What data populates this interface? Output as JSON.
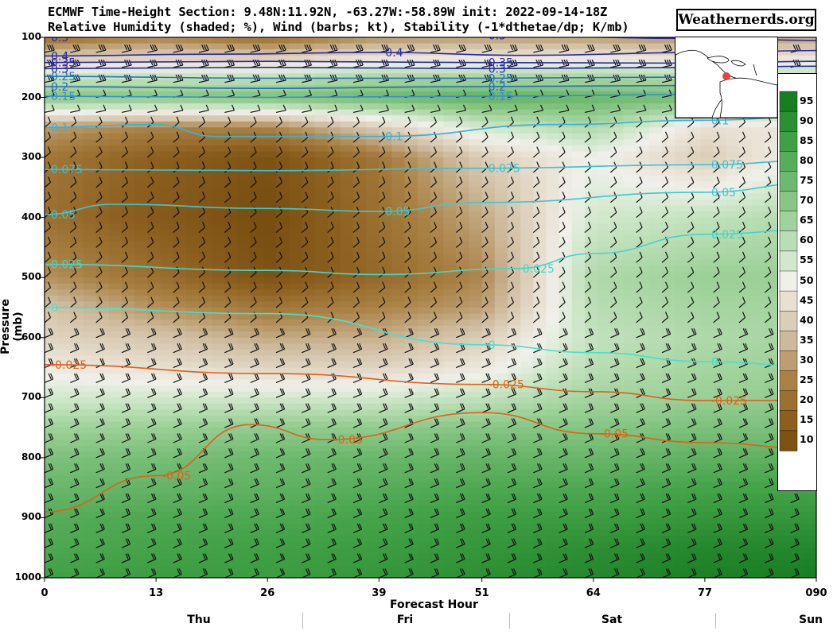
{
  "title": {
    "line1": "ECMWF Time-Height Section: 9.48N:11.92N, -63.27W:-58.89W init: 2022-09-14-18Z",
    "line2": "Relative Humidity (shaded; %), Wind (barbs; kt), Stability (-1*dthetae/dp; K/mb)"
  },
  "brand": "Weathernerds.org",
  "colors": {
    "dry_max": "#7a4e10",
    "moist_max": "#147a1f",
    "stability_positive": "#2a2aa0",
    "stability_mid": "#3a8fd0",
    "stability_low": "#3fd0c8",
    "stability_negative": "#e0601a"
  },
  "chart_data": {
    "type": "heatmap",
    "title": "ECMWF Time-Height Section: 9.48N:11.92N, -63.27W:-58.89W init: 2022-09-14-18Z",
    "subtitle": "Relative Humidity (shaded; %), Wind (barbs; kt), Stability (-1*dthetae/dp; K/mb)",
    "xlabel": "Forecast Hour",
    "ylabel": "Pressure (mb)",
    "xlim": [
      0,
      90
    ],
    "ylim": [
      1000,
      100
    ],
    "x_ticks": [
      "0",
      "13",
      "26",
      "39",
      "51",
      "64",
      "77",
      "090"
    ],
    "x_tick_values": [
      0,
      13,
      26,
      39,
      51,
      64,
      77,
      90
    ],
    "y_ticks": [
      "100",
      "200",
      "300",
      "400",
      "500",
      "600",
      "700",
      "800",
      "900",
      "1000"
    ],
    "y_tick_values": [
      100,
      200,
      300,
      400,
      500,
      600,
      700,
      800,
      900,
      1000
    ],
    "day_labels": [
      "Thu",
      "Fri",
      "Sat",
      "Sun"
    ],
    "colorbar_ticks": [
      "95",
      "90",
      "85",
      "80",
      "75",
      "70",
      "65",
      "60",
      "55",
      "50",
      "45",
      "40",
      "35",
      "30",
      "25",
      "20",
      "15",
      "10"
    ],
    "rh_columns": [
      {
        "hour": 0,
        "rh": [
          [
            100,
            20
          ],
          [
            160,
            55
          ],
          [
            200,
            70
          ],
          [
            250,
            30
          ],
          [
            300,
            22
          ],
          [
            400,
            20
          ],
          [
            500,
            28
          ],
          [
            550,
            38
          ],
          [
            600,
            42
          ],
          [
            650,
            48
          ],
          [
            700,
            55
          ],
          [
            750,
            65
          ],
          [
            800,
            72
          ],
          [
            850,
            76
          ],
          [
            900,
            80
          ],
          [
            950,
            82
          ],
          [
            1000,
            85
          ]
        ]
      },
      {
        "hour": 13,
        "rh": [
          [
            100,
            25
          ],
          [
            160,
            55
          ],
          [
            200,
            70
          ],
          [
            250,
            25
          ],
          [
            300,
            15
          ],
          [
            400,
            13
          ],
          [
            500,
            20
          ],
          [
            550,
            28
          ],
          [
            600,
            38
          ],
          [
            650,
            45
          ],
          [
            700,
            55
          ],
          [
            750,
            66
          ],
          [
            800,
            73
          ],
          [
            850,
            77
          ],
          [
            900,
            82
          ],
          [
            950,
            84
          ],
          [
            1000,
            86
          ]
        ]
      },
      {
        "hour": 26,
        "rh": [
          [
            100,
            20
          ],
          [
            160,
            55
          ],
          [
            200,
            72
          ],
          [
            250,
            25
          ],
          [
            300,
            10
          ],
          [
            400,
            8
          ],
          [
            500,
            10
          ],
          [
            550,
            22
          ],
          [
            600,
            32
          ],
          [
            650,
            42
          ],
          [
            700,
            55
          ],
          [
            750,
            68
          ],
          [
            800,
            75
          ],
          [
            850,
            78
          ],
          [
            900,
            82
          ],
          [
            950,
            85
          ],
          [
            1000,
            86
          ]
        ]
      },
      {
        "hour": 39,
        "rh": [
          [
            100,
            28
          ],
          [
            160,
            60
          ],
          [
            200,
            75
          ],
          [
            250,
            40
          ],
          [
            300,
            22
          ],
          [
            400,
            20
          ],
          [
            500,
            18
          ],
          [
            550,
            25
          ],
          [
            600,
            33
          ],
          [
            650,
            42
          ],
          [
            700,
            55
          ],
          [
            750,
            68
          ],
          [
            800,
            76
          ],
          [
            850,
            80
          ],
          [
            900,
            84
          ],
          [
            950,
            86
          ],
          [
            1000,
            88
          ]
        ]
      },
      {
        "hour": 51,
        "rh": [
          [
            100,
            30
          ],
          [
            160,
            60
          ],
          [
            200,
            78
          ],
          [
            250,
            55
          ],
          [
            300,
            40
          ],
          [
            400,
            32
          ],
          [
            500,
            26
          ],
          [
            550,
            30
          ],
          [
            600,
            40
          ],
          [
            650,
            47
          ],
          [
            700,
            58
          ],
          [
            750,
            70
          ],
          [
            800,
            77
          ],
          [
            850,
            82
          ],
          [
            900,
            86
          ],
          [
            950,
            88
          ],
          [
            1000,
            90
          ]
        ]
      },
      {
        "hour": 64,
        "rh": [
          [
            100,
            30
          ],
          [
            160,
            60
          ],
          [
            200,
            76
          ],
          [
            250,
            62
          ],
          [
            300,
            50
          ],
          [
            400,
            55
          ],
          [
            500,
            62
          ],
          [
            550,
            60
          ],
          [
            600,
            58
          ],
          [
            650,
            60
          ],
          [
            700,
            64
          ],
          [
            750,
            70
          ],
          [
            800,
            76
          ],
          [
            850,
            82
          ],
          [
            900,
            86
          ],
          [
            950,
            90
          ],
          [
            1000,
            92
          ]
        ]
      },
      {
        "hour": 77,
        "rh": [
          [
            100,
            28
          ],
          [
            160,
            58
          ],
          [
            200,
            74
          ],
          [
            250,
            45
          ],
          [
            300,
            40
          ],
          [
            400,
            58
          ],
          [
            500,
            66
          ],
          [
            550,
            64
          ],
          [
            600,
            62
          ],
          [
            650,
            64
          ],
          [
            700,
            66
          ],
          [
            750,
            72
          ],
          [
            800,
            78
          ],
          [
            850,
            84
          ],
          [
            900,
            88
          ],
          [
            950,
            92
          ],
          [
            1000,
            94
          ]
        ]
      },
      {
        "hour": 90,
        "rh": [
          [
            100,
            32
          ],
          [
            160,
            58
          ],
          [
            200,
            72
          ],
          [
            250,
            48
          ],
          [
            300,
            52
          ],
          [
            400,
            62
          ],
          [
            500,
            66
          ],
          [
            550,
            64
          ],
          [
            600,
            64
          ],
          [
            650,
            66
          ],
          [
            700,
            68
          ],
          [
            750,
            72
          ],
          [
            800,
            78
          ],
          [
            850,
            84
          ],
          [
            900,
            88
          ],
          [
            950,
            92
          ],
          [
            1000,
            95
          ]
        ]
      }
    ],
    "stability_contours": [
      {
        "label": "0.5",
        "color": "#2a2aa0",
        "points": [
          [
            0,
            100
          ],
          [
            26,
            97
          ],
          [
            51,
            97
          ],
          [
            77,
            102
          ],
          [
            90,
            105
          ]
        ]
      },
      {
        "label": "0.4",
        "color": "#2a2aa0",
        "points": [
          [
            0,
            131
          ],
          [
            20,
            128
          ],
          [
            39,
            125
          ],
          [
            56,
            130
          ],
          [
            77,
            125
          ],
          [
            90,
            122
          ]
        ]
      },
      {
        "label": "0.35",
        "color": "#2a2aa0",
        "points": [
          [
            0,
            142
          ],
          [
            26,
            140
          ],
          [
            51,
            142
          ],
          [
            77,
            143
          ],
          [
            90,
            140
          ]
        ]
      },
      {
        "label": "0.3",
        "color": "#2a2aa0",
        "points": [
          [
            0,
            152
          ],
          [
            26,
            150
          ],
          [
            51,
            152
          ],
          [
            77,
            150
          ],
          [
            90,
            148
          ]
        ]
      },
      {
        "label": "0.25",
        "color": "#2a6fb8",
        "points": [
          [
            0,
            165
          ],
          [
            26,
            168
          ],
          [
            51,
            168
          ],
          [
            77,
            166
          ],
          [
            90,
            165
          ]
        ]
      },
      {
        "label": "0.2",
        "color": "#2a6fb8",
        "points": [
          [
            0,
            182
          ],
          [
            26,
            185
          ],
          [
            51,
            182
          ],
          [
            77,
            180
          ],
          [
            90,
            178
          ]
        ]
      },
      {
        "label": "0.15",
        "color": "#3a8fd0",
        "points": [
          [
            0,
            198
          ],
          [
            26,
            200
          ],
          [
            51,
            198
          ],
          [
            77,
            195
          ],
          [
            90,
            194
          ]
        ]
      },
      {
        "label": "0.1",
        "color": "#3ab0d8",
        "points": [
          [
            0,
            250
          ],
          [
            13,
            245
          ],
          [
            20,
            265
          ],
          [
            39,
            265
          ],
          [
            60,
            245
          ],
          [
            77,
            238
          ],
          [
            90,
            232
          ]
        ]
      },
      {
        "label": "0.075",
        "color": "#3fc0d0",
        "points": [
          [
            0,
            320
          ],
          [
            26,
            322
          ],
          [
            51,
            318
          ],
          [
            77,
            312
          ],
          [
            90,
            305
          ]
        ]
      },
      {
        "label": "0.05",
        "color": "#3fc8cc",
        "points": [
          [
            0,
            395
          ],
          [
            8,
            378
          ],
          [
            26,
            385
          ],
          [
            39,
            390
          ],
          [
            51,
            375
          ],
          [
            77,
            358
          ],
          [
            90,
            342
          ]
        ]
      },
      {
        "label": "0.025",
        "color": "#44d6c8",
        "points": [
          [
            0,
            478
          ],
          [
            26,
            488
          ],
          [
            39,
            495
          ],
          [
            55,
            485
          ],
          [
            64,
            460
          ],
          [
            77,
            428
          ],
          [
            90,
            420
          ]
        ]
      },
      {
        "label": "0",
        "color": "#48e0cc",
        "points": [
          [
            0,
            550
          ],
          [
            26,
            560
          ],
          [
            51,
            612
          ],
          [
            64,
            625
          ],
          [
            77,
            640
          ],
          [
            90,
            648
          ]
        ]
      },
      {
        "label": "-0.025",
        "color": "#e0601a",
        "points": [
          [
            0,
            645
          ],
          [
            26,
            660
          ],
          [
            51,
            678
          ],
          [
            64,
            690
          ],
          [
            77,
            705
          ],
          [
            90,
            705
          ]
        ]
      },
      {
        "label": "-0.05",
        "color": "#e0601a",
        "points": [
          [
            0,
            890
          ],
          [
            13,
            830
          ],
          [
            24,
            745
          ],
          [
            33,
            770
          ],
          [
            51,
            725
          ],
          [
            64,
            760
          ],
          [
            77,
            775
          ],
          [
            90,
            785
          ]
        ]
      }
    ],
    "wind_barb_rows": [
      100,
      125,
      150,
      175,
      200,
      225,
      250,
      275,
      300,
      325,
      350,
      375,
      400,
      425,
      450,
      475,
      500,
      525,
      550,
      575,
      600,
      625,
      650,
      675,
      700,
      725,
      750,
      775,
      800,
      825,
      850,
      875,
      900,
      925,
      950,
      975,
      1000
    ],
    "grid": false,
    "legend": "right"
  }
}
